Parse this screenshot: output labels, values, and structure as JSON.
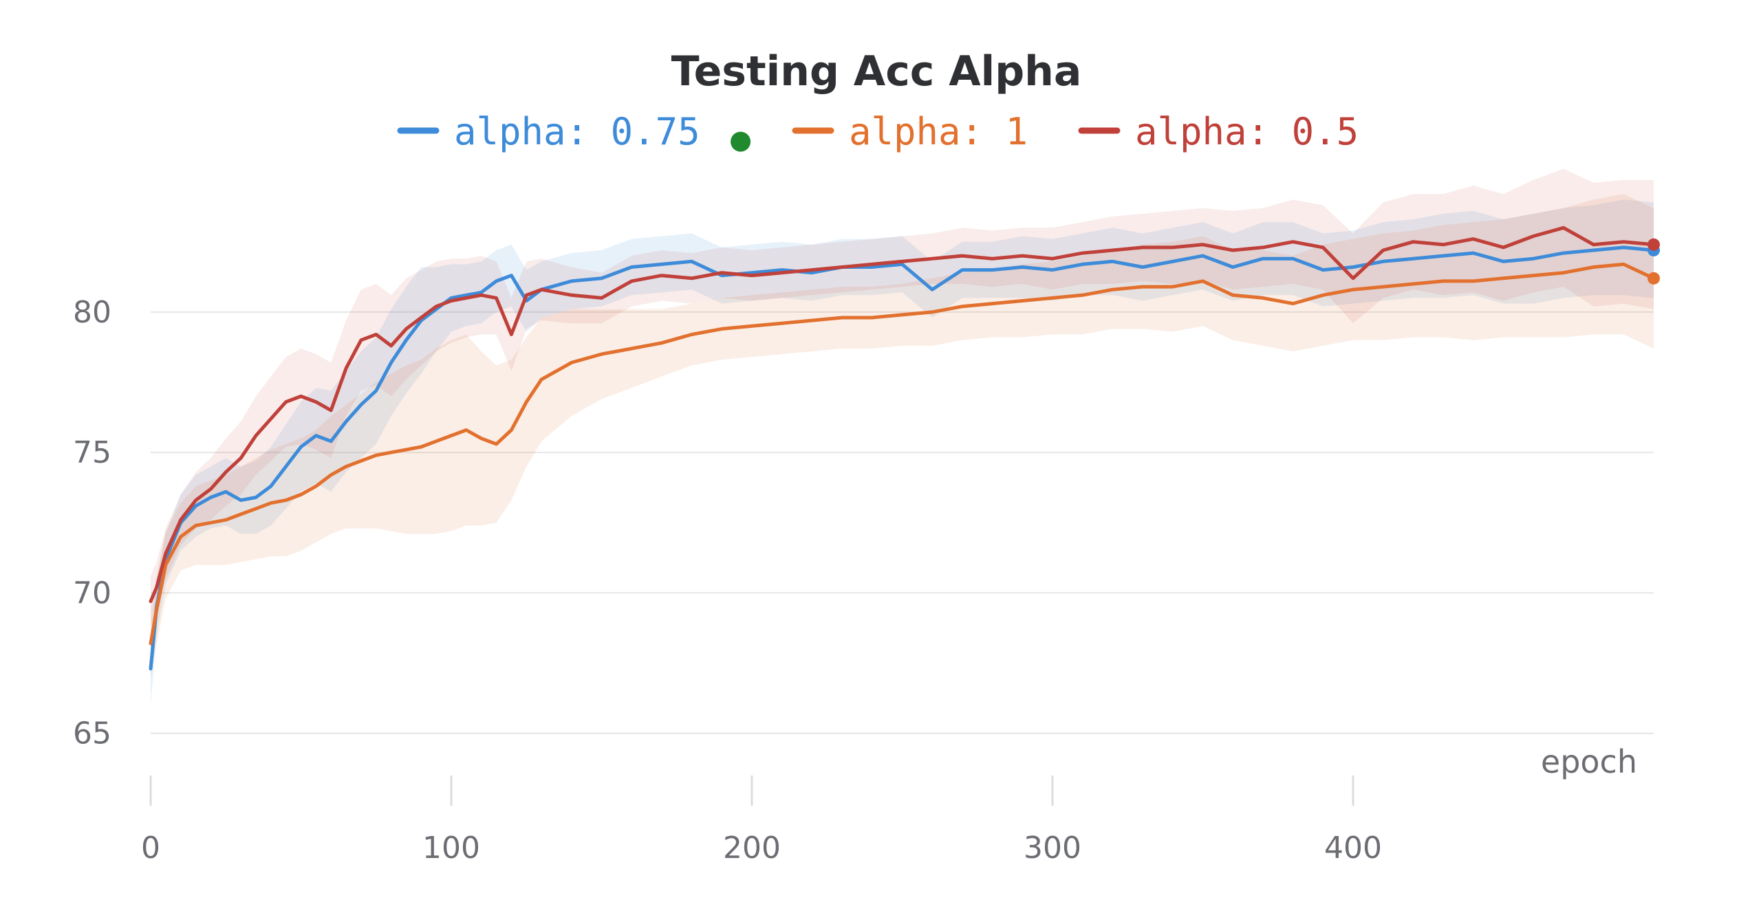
{
  "chart_data": {
    "type": "line",
    "title": "Testing Acc Alpha",
    "xlabel": "epoch",
    "ylabel": "",
    "xlim": [
      0,
      500
    ],
    "ylim": [
      63.5,
      84.5
    ],
    "x_ticks": [
      0,
      100,
      200,
      300,
      400
    ],
    "y_ticks": [
      65,
      70,
      75,
      80
    ],
    "grid": "horizontal",
    "legend_position": "top-center",
    "legend_marker": "●",
    "series": [
      {
        "name": "alpha: 0.75",
        "color": "#3d8bd9",
        "band_opacity": 0.12,
        "x": [
          0,
          2,
          5,
          10,
          15,
          20,
          25,
          30,
          35,
          40,
          45,
          50,
          55,
          60,
          65,
          70,
          75,
          80,
          85,
          90,
          95,
          100,
          105,
          110,
          115,
          120,
          125,
          130,
          140,
          150,
          160,
          170,
          180,
          190,
          200,
          210,
          220,
          230,
          240,
          250,
          260,
          270,
          280,
          290,
          300,
          310,
          320,
          330,
          340,
          350,
          360,
          370,
          380,
          390,
          400,
          410,
          420,
          430,
          440,
          450,
          460,
          470,
          480,
          490,
          500
        ],
        "values": [
          67.3,
          69.5,
          71.2,
          72.5,
          73.1,
          73.4,
          73.6,
          73.3,
          73.4,
          73.8,
          74.5,
          75.2,
          75.6,
          75.4,
          76.1,
          76.7,
          77.2,
          78.2,
          79.0,
          79.7,
          80.1,
          80.5,
          80.6,
          80.7,
          81.1,
          81.3,
          80.4,
          80.8,
          81.1,
          81.2,
          81.6,
          81.7,
          81.8,
          81.3,
          81.4,
          81.5,
          81.4,
          81.6,
          81.6,
          81.7,
          80.8,
          81.5,
          81.5,
          81.6,
          81.5,
          81.7,
          81.8,
          81.6,
          81.8,
          82.0,
          81.6,
          81.9,
          81.9,
          81.5,
          81.6,
          81.8,
          81.9,
          82.0,
          82.1,
          81.8,
          81.9,
          82.1,
          82.2,
          82.3,
          82.2
        ],
        "lower": [
          66.0,
          68.5,
          70.3,
          71.5,
          72.0,
          72.3,
          72.4,
          72.1,
          72.1,
          72.4,
          73.0,
          73.6,
          73.9,
          73.6,
          74.3,
          74.8,
          75.3,
          76.3,
          77.1,
          77.8,
          78.6,
          79.3,
          79.5,
          79.6,
          80.0,
          80.2,
          79.3,
          79.8,
          80.1,
          80.2,
          80.6,
          80.7,
          80.8,
          80.3,
          80.4,
          80.5,
          80.4,
          80.6,
          80.6,
          80.7,
          79.8,
          80.5,
          80.5,
          80.5,
          80.4,
          80.6,
          80.6,
          80.4,
          80.6,
          80.8,
          80.4,
          80.6,
          80.6,
          80.2,
          80.3,
          80.4,
          80.5,
          80.5,
          80.6,
          80.3,
          80.3,
          80.5,
          80.6,
          80.6,
          80.5
        ],
        "upper": [
          68.6,
          70.5,
          72.1,
          73.5,
          74.2,
          74.5,
          74.8,
          74.5,
          74.7,
          75.2,
          76.0,
          76.8,
          77.3,
          77.2,
          77.9,
          78.6,
          79.1,
          80.1,
          80.9,
          81.6,
          81.6,
          81.7,
          81.7,
          81.8,
          82.2,
          82.4,
          81.5,
          81.8,
          82.1,
          82.2,
          82.6,
          82.7,
          82.8,
          82.3,
          82.4,
          82.5,
          82.4,
          82.6,
          82.6,
          82.7,
          81.8,
          82.5,
          82.5,
          82.7,
          82.6,
          82.8,
          83.0,
          82.8,
          83.0,
          83.2,
          82.8,
          83.2,
          83.2,
          82.8,
          82.9,
          83.2,
          83.3,
          83.5,
          83.6,
          83.3,
          83.5,
          83.7,
          83.8,
          84.0,
          83.9
        ]
      },
      {
        "name": "alpha: 1",
        "color": "#e2702e",
        "band_opacity": 0.12,
        "x": [
          0,
          2,
          5,
          10,
          15,
          20,
          25,
          30,
          35,
          40,
          45,
          50,
          55,
          60,
          65,
          70,
          75,
          80,
          85,
          90,
          95,
          100,
          105,
          110,
          115,
          120,
          125,
          130,
          140,
          150,
          160,
          170,
          180,
          190,
          200,
          210,
          220,
          230,
          240,
          250,
          260,
          270,
          280,
          290,
          300,
          310,
          320,
          330,
          340,
          350,
          360,
          370,
          380,
          390,
          400,
          410,
          420,
          430,
          440,
          450,
          460,
          470,
          480,
          490,
          500
        ],
        "values": [
          68.2,
          69.4,
          71.0,
          72.0,
          72.4,
          72.5,
          72.6,
          72.8,
          73.0,
          73.2,
          73.3,
          73.5,
          73.8,
          74.2,
          74.5,
          74.7,
          74.9,
          75.0,
          75.1,
          75.2,
          75.4,
          75.6,
          75.8,
          75.5,
          75.3,
          75.8,
          76.8,
          77.6,
          78.2,
          78.5,
          78.7,
          78.9,
          79.2,
          79.4,
          79.5,
          79.6,
          79.7,
          79.8,
          79.8,
          79.9,
          80.0,
          80.2,
          80.3,
          80.4,
          80.5,
          80.6,
          80.8,
          80.9,
          80.9,
          81.1,
          80.6,
          80.5,
          80.3,
          80.6,
          80.8,
          80.9,
          81.0,
          81.1,
          81.1,
          81.2,
          81.3,
          81.4,
          81.6,
          81.7,
          81.2
        ],
        "lower": [
          67.0,
          68.2,
          69.8,
          70.8,
          71.0,
          71.0,
          71.0,
          71.1,
          71.2,
          71.3,
          71.3,
          71.5,
          71.8,
          72.1,
          72.3,
          72.3,
          72.3,
          72.2,
          72.1,
          72.1,
          72.1,
          72.2,
          72.4,
          72.4,
          72.5,
          73.3,
          74.5,
          75.4,
          76.3,
          76.9,
          77.3,
          77.7,
          78.1,
          78.3,
          78.4,
          78.5,
          78.6,
          78.7,
          78.7,
          78.8,
          78.8,
          79.0,
          79.1,
          79.1,
          79.2,
          79.2,
          79.4,
          79.4,
          79.3,
          79.5,
          79.0,
          78.8,
          78.6,
          78.8,
          79.0,
          79.0,
          79.1,
          79.1,
          79.0,
          79.1,
          79.1,
          79.1,
          79.2,
          79.2,
          78.7
        ],
        "upper": [
          69.4,
          70.6,
          72.2,
          73.2,
          73.8,
          74.0,
          74.2,
          74.5,
          74.8,
          75.1,
          75.3,
          75.5,
          75.8,
          76.3,
          76.7,
          77.1,
          77.5,
          77.8,
          78.1,
          78.3,
          78.7,
          79.0,
          79.2,
          78.6,
          78.1,
          78.3,
          79.1,
          79.8,
          80.1,
          80.1,
          80.1,
          80.1,
          80.3,
          80.5,
          80.6,
          80.7,
          80.8,
          80.9,
          80.9,
          81.0,
          81.2,
          81.4,
          81.5,
          81.7,
          81.8,
          82.0,
          82.2,
          82.4,
          82.5,
          82.7,
          82.2,
          82.2,
          82.0,
          82.4,
          82.6,
          82.8,
          82.9,
          83.1,
          83.2,
          83.3,
          83.5,
          83.7,
          84.0,
          84.2,
          83.7
        ]
      },
      {
        "name": "alpha: 0.5",
        "color": "#c0403a",
        "band_opacity": 0.1,
        "x": [
          0,
          2,
          5,
          10,
          15,
          20,
          25,
          30,
          35,
          40,
          45,
          50,
          55,
          60,
          65,
          70,
          75,
          80,
          85,
          90,
          95,
          100,
          105,
          110,
          115,
          120,
          125,
          130,
          140,
          150,
          160,
          170,
          180,
          190,
          200,
          210,
          220,
          230,
          240,
          250,
          260,
          270,
          280,
          290,
          300,
          310,
          320,
          330,
          340,
          350,
          360,
          370,
          380,
          390,
          400,
          410,
          420,
          430,
          440,
          450,
          460,
          470,
          480,
          490,
          500
        ],
        "values": [
          69.7,
          70.2,
          71.4,
          72.6,
          73.3,
          73.7,
          74.3,
          74.8,
          75.6,
          76.2,
          76.8,
          77.0,
          76.8,
          76.5,
          78.0,
          79.0,
          79.2,
          78.8,
          79.4,
          79.8,
          80.2,
          80.4,
          80.5,
          80.6,
          80.5,
          79.2,
          80.6,
          80.8,
          80.6,
          80.5,
          81.1,
          81.3,
          81.2,
          81.4,
          81.3,
          81.4,
          81.5,
          81.6,
          81.7,
          81.8,
          81.9,
          82.0,
          81.9,
          82.0,
          81.9,
          82.1,
          82.2,
          82.3,
          82.3,
          82.4,
          82.2,
          82.3,
          82.5,
          82.3,
          81.2,
          82.2,
          82.5,
          82.4,
          82.6,
          82.3,
          82.7,
          83.0,
          82.4,
          82.5,
          82.4
        ],
        "lower": [
          68.8,
          69.3,
          70.5,
          71.7,
          72.3,
          72.6,
          73.1,
          73.5,
          74.2,
          74.7,
          75.2,
          75.3,
          75.1,
          74.8,
          76.3,
          77.2,
          77.4,
          77.0,
          77.6,
          78.1,
          78.6,
          78.9,
          79.1,
          79.2,
          79.2,
          77.9,
          79.4,
          79.7,
          79.6,
          79.6,
          80.2,
          80.4,
          80.3,
          80.5,
          80.4,
          80.5,
          80.6,
          80.7,
          80.8,
          80.9,
          81.0,
          81.0,
          80.9,
          81.0,
          80.8,
          81.0,
          81.0,
          81.1,
          81.0,
          81.1,
          80.8,
          80.9,
          81.0,
          80.8,
          79.6,
          80.5,
          80.8,
          80.6,
          80.7,
          80.4,
          80.7,
          80.9,
          80.2,
          80.3,
          80.1
        ],
        "upper": [
          70.6,
          71.1,
          72.3,
          73.5,
          74.3,
          74.8,
          75.5,
          76.1,
          77.0,
          77.7,
          78.4,
          78.7,
          78.5,
          78.2,
          79.7,
          80.8,
          81.0,
          80.6,
          81.2,
          81.5,
          81.8,
          81.9,
          81.9,
          82.0,
          81.8,
          80.5,
          81.8,
          81.9,
          81.6,
          81.4,
          82.0,
          82.2,
          82.1,
          82.3,
          82.2,
          82.3,
          82.4,
          82.5,
          82.6,
          82.7,
          82.8,
          83.0,
          82.9,
          83.0,
          83.0,
          83.2,
          83.4,
          83.5,
          83.6,
          83.7,
          83.6,
          83.7,
          84.0,
          83.8,
          82.8,
          83.9,
          84.2,
          84.2,
          84.5,
          84.2,
          84.7,
          85.1,
          84.6,
          84.7,
          84.7
        ]
      }
    ]
  }
}
